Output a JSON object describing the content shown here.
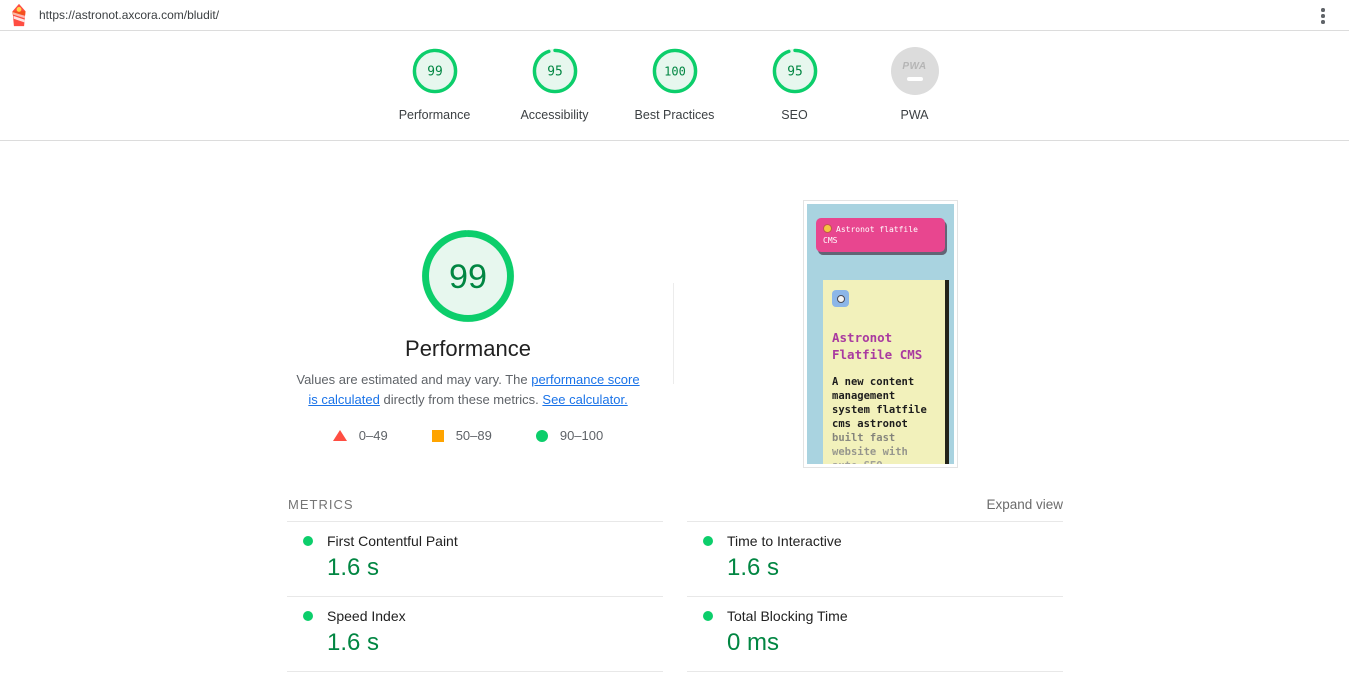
{
  "topbar": {
    "url": "https://astronot.axcora.com/bludit/"
  },
  "scores_header": {
    "items": [
      {
        "label": "Performance",
        "score": "99",
        "pct": 99
      },
      {
        "label": "Accessibility",
        "score": "95",
        "pct": 95
      },
      {
        "label": "Best Practices",
        "score": "100",
        "pct": 100
      },
      {
        "label": "SEO",
        "score": "95",
        "pct": 95
      },
      {
        "label": "PWA",
        "badge_text": "PWA"
      }
    ]
  },
  "summary": {
    "score": "99",
    "pct": 99,
    "title": "Performance",
    "description": {
      "part1": "Values are estimated and may vary. The ",
      "link1": "performance score is calculated",
      "part2": " directly from these metrics. ",
      "link2": "See calculator."
    },
    "legend": [
      {
        "range": "0–49",
        "shape": "triangle",
        "color": "#ff4e42"
      },
      {
        "range": "50–89",
        "shape": "square",
        "color": "#ffa400"
      },
      {
        "range": "90–100",
        "shape": "circle",
        "color": "#0cce6b"
      }
    ]
  },
  "thumbnail": {
    "navbar_text": "Astronot flatfile\nCMS",
    "card_title": "Astronot\nFlatfile CMS",
    "card_text_bold": "A new content\nmanagement\nsystem flatfile\ncms astronot",
    "card_text_fade": "built fast\nwebsite with\nauto SEO\ninjection."
  },
  "metrics": {
    "section_label": "METRICS",
    "expand_label": "Expand view",
    "items": [
      {
        "name": "First Contentful Paint",
        "value": "1.6 s"
      },
      {
        "name": "Time to Interactive",
        "value": "1.6 s"
      },
      {
        "name": "Speed Index",
        "value": "1.6 s"
      },
      {
        "name": "Total Blocking Time",
        "value": "0 ms"
      }
    ]
  },
  "colors": {
    "score_green": "#0cce6b",
    "score_green_text": "#018642",
    "average_orange": "#ffa400",
    "fail_red": "#ff4e42",
    "link_blue": "#1a73e8"
  }
}
